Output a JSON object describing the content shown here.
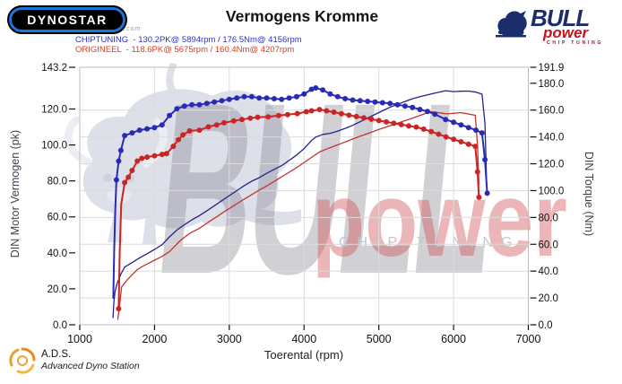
{
  "header": {
    "dynostar": {
      "text": "DYNOSTAR",
      "suffix": ".com"
    },
    "title": "Vermogens Kromme",
    "legend": [
      {
        "label": "CHIPTUNING  - 130.2PK@ 5894rpm / 176.5Nm@ 4156rpm",
        "color": "#2f2fd0"
      },
      {
        "label": "ORIGINEEL  - 118.6PK@ 5675rpm / 160.4Nm@ 4207rpm",
        "color": "#e03a22"
      }
    ],
    "bull_logo": {
      "brand": "BULL",
      "product": "power",
      "tagline": "CHIP TUNING"
    }
  },
  "watermark": {
    "brand": "BULL",
    "product": "power",
    "tagline": "CHIP TUNING"
  },
  "footer": {
    "ads_abbr": "A.D.S.",
    "ads_name": "Advanced Dyno Station"
  },
  "chart_data": {
    "type": "line",
    "title": "Vermogens Kromme",
    "xlabel": "Toerental (rpm)",
    "ylabel_left": "DIN Motor Vermogen (pk)",
    "ylabel_right": "DIN Torque (Nm)",
    "xlim": [
      1000,
      7000
    ],
    "ylim_left": [
      0,
      143.2
    ],
    "ylim_right": [
      0,
      191.9
    ],
    "grid": {
      "h_torque_values": [
        20,
        40,
        60,
        80,
        100,
        120,
        140,
        160
      ],
      "v_rpm_values": [
        2000,
        3000,
        4000,
        5000,
        6000
      ]
    },
    "x_ticks": [
      {
        "v": 1000,
        "label": "1000"
      },
      {
        "v": 2000,
        "label": "2000"
      },
      {
        "v": 3000,
        "label": "3000"
      },
      {
        "v": 4000,
        "label": "4000"
      },
      {
        "v": 5000,
        "label": "5000"
      },
      {
        "v": 6000,
        "label": "6000"
      },
      {
        "v": 7000,
        "label": "7000"
      }
    ],
    "left_ticks": [
      {
        "v": 0,
        "label": "0.0"
      },
      {
        "v": 20,
        "label": "20.0"
      },
      {
        "v": 40,
        "label": "40.0"
      },
      {
        "v": 60,
        "label": "60.0"
      },
      {
        "v": 80,
        "label": "80.0"
      },
      {
        "v": 100,
        "label": "100.0"
      },
      {
        "v": 120,
        "label": "120.0"
      },
      {
        "v": 143.2,
        "label": "143.2"
      }
    ],
    "right_ticks": [
      {
        "v": 0,
        "label": "0.0"
      },
      {
        "v": 20,
        "label": "20.0"
      },
      {
        "v": 40,
        "label": "40.0"
      },
      {
        "v": 60,
        "label": "60.0"
      },
      {
        "v": 80,
        "label": "80.0"
      },
      {
        "v": 100,
        "label": "100.0"
      },
      {
        "v": 120,
        "label": "120.0"
      },
      {
        "v": 140,
        "label": "140.0"
      },
      {
        "v": 160,
        "label": "160.0"
      },
      {
        "v": 180,
        "label": "180.0"
      },
      {
        "v": 191.9,
        "label": "191.9"
      }
    ],
    "results": {
      "chiptuning": {
        "power_pk": 130.2,
        "power_rpm": 5894,
        "torque_nm": 176.5,
        "torque_rpm": 4156
      },
      "origineel": {
        "power_pk": 118.6,
        "power_rpm": 5675,
        "torque_nm": 160.4,
        "torque_rpm": 4207
      }
    },
    "series": [
      {
        "id": "chiptuning-power",
        "name": "CHIPTUNING vermogen (pk)",
        "axis": "left",
        "color": "#23238f",
        "width": 1.3,
        "markers": false,
        "points": [
          [
            1445,
            4
          ],
          [
            1455,
            12
          ],
          [
            1470,
            18
          ],
          [
            1500,
            23
          ],
          [
            1550,
            28.2
          ],
          [
            1600,
            32.1
          ],
          [
            1700,
            34.6
          ],
          [
            1800,
            37.2
          ],
          [
            1900,
            39.5
          ],
          [
            2000,
            41.9
          ],
          [
            2100,
            44.5
          ],
          [
            2200,
            48.9
          ],
          [
            2300,
            52.7
          ],
          [
            2400,
            55.7
          ],
          [
            2500,
            58.4
          ],
          [
            2600,
            60.7
          ],
          [
            2700,
            63.4
          ],
          [
            2800,
            66.2
          ],
          [
            2900,
            69
          ],
          [
            3000,
            71.8
          ],
          [
            3100,
            74.6
          ],
          [
            3200,
            77.4
          ],
          [
            3300,
            79.9
          ],
          [
            3400,
            81.8
          ],
          [
            3500,
            84.2
          ],
          [
            3600,
            86.4
          ],
          [
            3700,
            88.5
          ],
          [
            3800,
            91.4
          ],
          [
            3900,
            94.4
          ],
          [
            4000,
            98
          ],
          [
            4100,
            102.5
          ],
          [
            4156,
            104.4
          ],
          [
            4250,
            105.9
          ],
          [
            4350,
            106.5
          ],
          [
            4450,
            107.7
          ],
          [
            4550,
            109.2
          ],
          [
            4650,
            110.9
          ],
          [
            4750,
            112.9
          ],
          [
            4850,
            115
          ],
          [
            4950,
            117
          ],
          [
            5050,
            119
          ],
          [
            5150,
            121
          ],
          [
            5250,
            122.6
          ],
          [
            5350,
            124.2
          ],
          [
            5450,
            125.7
          ],
          [
            5550,
            126.9
          ],
          [
            5650,
            127.9
          ],
          [
            5750,
            128.9
          ],
          [
            5894,
            130.2
          ],
          [
            6000,
            129.7
          ],
          [
            6100,
            129.9
          ],
          [
            6200,
            130
          ],
          [
            6300,
            129.4
          ],
          [
            6380,
            128.3
          ],
          [
            6420,
            112
          ],
          [
            6445,
            74
          ]
        ]
      },
      {
        "id": "origineel-power",
        "name": "ORIGINEEL vermogen (pk)",
        "axis": "left",
        "color": "#c03434",
        "width": 1.3,
        "markers": false,
        "points": [
          [
            1510,
            3
          ],
          [
            1530,
            10
          ],
          [
            1560,
            21
          ],
          [
            1630,
            24.8
          ],
          [
            1700,
            27.8
          ],
          [
            1770,
            30.7
          ],
          [
            1830,
            32.3
          ],
          [
            1900,
            33.8
          ],
          [
            2000,
            35.9
          ],
          [
            2100,
            38
          ],
          [
            2200,
            40.7
          ],
          [
            2300,
            44.9
          ],
          [
            2360,
            47.4
          ],
          [
            2470,
            50.8
          ],
          [
            2600,
            53.7
          ],
          [
            2720,
            57.1
          ],
          [
            2830,
            60
          ],
          [
            2930,
            62.8
          ],
          [
            3060,
            66.2
          ],
          [
            3170,
            69.1
          ],
          [
            3280,
            71.9
          ],
          [
            3380,
            74.4
          ],
          [
            3520,
            77.7
          ],
          [
            3660,
            81.3
          ],
          [
            3780,
            84.3
          ],
          [
            3910,
            87.6
          ],
          [
            4030,
            91.1
          ],
          [
            4100,
            93.1
          ],
          [
            4207,
            96.1
          ],
          [
            4300,
            97.7
          ],
          [
            4400,
            99.3
          ],
          [
            4500,
            100.9
          ],
          [
            4600,
            102.5
          ],
          [
            4700,
            104.1
          ],
          [
            4800,
            105.6
          ],
          [
            4900,
            107.1
          ],
          [
            5000,
            108.6
          ],
          [
            5100,
            110
          ],
          [
            5200,
            111.4
          ],
          [
            5300,
            112.8
          ],
          [
            5400,
            114.2
          ],
          [
            5500,
            115.7
          ],
          [
            5600,
            117.1
          ],
          [
            5675,
            118.6
          ],
          [
            5800,
            117.9
          ],
          [
            5900,
            117.3
          ],
          [
            6000,
            117.6
          ],
          [
            6100,
            118
          ],
          [
            6200,
            117.2
          ],
          [
            6290,
            116.5
          ],
          [
            6320,
            100
          ],
          [
            6340,
            78
          ]
        ]
      },
      {
        "id": "chiptuning-torque",
        "name": "CHIPTUNING koppel (Nm)",
        "axis": "right",
        "color": "#2a2ab8",
        "width": 2,
        "markers": true,
        "marker_start": false,
        "points": [
          [
            1448,
            20
          ],
          [
            1460,
            55
          ],
          [
            1475,
            85
          ],
          [
            1490,
            108
          ],
          [
            1520,
            122
          ],
          [
            1550,
            130
          ],
          [
            1600,
            141
          ],
          [
            1700,
            143
          ],
          [
            1800,
            145
          ],
          [
            1900,
            146
          ],
          [
            2000,
            147
          ],
          [
            2100,
            149
          ],
          [
            2200,
            156
          ],
          [
            2300,
            161
          ],
          [
            2400,
            163
          ],
          [
            2500,
            164
          ],
          [
            2600,
            164
          ],
          [
            2700,
            165
          ],
          [
            2800,
            166
          ],
          [
            2900,
            167
          ],
          [
            3000,
            168
          ],
          [
            3100,
            169
          ],
          [
            3200,
            170
          ],
          [
            3300,
            170
          ],
          [
            3400,
            169
          ],
          [
            3500,
            169
          ],
          [
            3600,
            168.5
          ],
          [
            3700,
            168
          ],
          [
            3800,
            169
          ],
          [
            3900,
            170
          ],
          [
            4000,
            172
          ],
          [
            4100,
            175.5
          ],
          [
            4156,
            176.5
          ],
          [
            4250,
            175
          ],
          [
            4350,
            172
          ],
          [
            4450,
            170
          ],
          [
            4550,
            168.5
          ],
          [
            4650,
            167.5
          ],
          [
            4750,
            167
          ],
          [
            4850,
            166.5
          ],
          [
            4950,
            166
          ],
          [
            5050,
            165.5
          ],
          [
            5150,
            165
          ],
          [
            5250,
            164
          ],
          [
            5350,
            163
          ],
          [
            5450,
            162
          ],
          [
            5550,
            160.5
          ],
          [
            5650,
            159
          ],
          [
            5750,
            157
          ],
          [
            5894,
            153
          ],
          [
            6000,
            151
          ],
          [
            6100,
            149
          ],
          [
            6200,
            147
          ],
          [
            6300,
            145
          ],
          [
            6380,
            143
          ],
          [
            6420,
            123
          ],
          [
            6450,
            98
          ]
        ]
      },
      {
        "id": "origineel-torque",
        "name": "ORIGINEEL koppel (Nm)",
        "axis": "right",
        "color": "#cc2424",
        "width": 2,
        "markers": true,
        "marker_start": true,
        "points": [
          [
            1520,
            12
          ],
          [
            1535,
            55
          ],
          [
            1555,
            90
          ],
          [
            1600,
            106
          ],
          [
            1650,
            110
          ],
          [
            1700,
            115
          ],
          [
            1770,
            122
          ],
          [
            1830,
            124
          ],
          [
            1900,
            125
          ],
          [
            2000,
            126
          ],
          [
            2100,
            127
          ],
          [
            2160,
            127.5
          ],
          [
            2250,
            133
          ],
          [
            2320,
            138
          ],
          [
            2380,
            141.5
          ],
          [
            2470,
            144.5
          ],
          [
            2600,
            145
          ],
          [
            2720,
            147.5
          ],
          [
            2830,
            149
          ],
          [
            2930,
            150.5
          ],
          [
            3060,
            152
          ],
          [
            3170,
            153
          ],
          [
            3280,
            154
          ],
          [
            3380,
            154.7
          ],
          [
            3520,
            155
          ],
          [
            3660,
            156
          ],
          [
            3780,
            156.6
          ],
          [
            3910,
            157.4
          ],
          [
            4030,
            158.8
          ],
          [
            4100,
            159.5
          ],
          [
            4207,
            160.4
          ],
          [
            4300,
            159.5
          ],
          [
            4400,
            158.5
          ],
          [
            4500,
            157.3
          ],
          [
            4600,
            156.2
          ],
          [
            4700,
            155.2
          ],
          [
            4800,
            154.2
          ],
          [
            4900,
            153.2
          ],
          [
            5000,
            152.2
          ],
          [
            5100,
            151.2
          ],
          [
            5200,
            150.2
          ],
          [
            5300,
            149.2
          ],
          [
            5400,
            148.2
          ],
          [
            5500,
            147.4
          ],
          [
            5600,
            145.8
          ],
          [
            5700,
            144
          ],
          [
            5800,
            142
          ],
          [
            5900,
            140
          ],
          [
            6000,
            138.2
          ],
          [
            6100,
            136.4
          ],
          [
            6200,
            134.6
          ],
          [
            6290,
            133
          ],
          [
            6320,
            114
          ],
          [
            6340,
            95
          ]
        ]
      }
    ]
  }
}
